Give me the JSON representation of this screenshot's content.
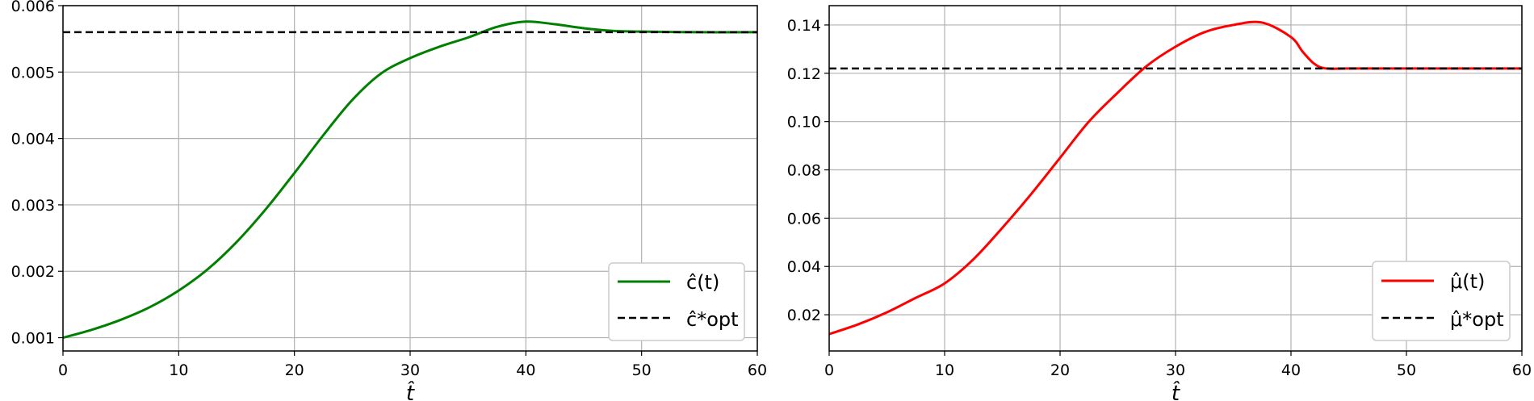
{
  "chart_data": [
    {
      "type": "line",
      "xlabel": "t̂",
      "xlim": [
        0,
        60
      ],
      "ylim": [
        0.0008,
        0.006
      ],
      "xticks": [
        "0",
        "10",
        "20",
        "30",
        "40",
        "50",
        "60"
      ],
      "yticks": [
        "0.001",
        "0.002",
        "0.003",
        "0.004",
        "0.005",
        "0.006"
      ],
      "grid": true,
      "legend_position": "bottom-right",
      "series": [
        {
          "name": "ĉ(t)",
          "color": "#008000",
          "style": "solid",
          "x": [
            0,
            2.5,
            5,
            7.5,
            10,
            12.5,
            15,
            17.5,
            20,
            22.5,
            25,
            27.5,
            30,
            32.5,
            35,
            37.5,
            40,
            42.5,
            45,
            47.5,
            50,
            55,
            60
          ],
          "y": [
            0.001,
            0.00112,
            0.00127,
            0.00146,
            0.00171,
            0.00203,
            0.00244,
            0.00293,
            0.00348,
            0.00405,
            0.00458,
            0.00498,
            0.00521,
            0.00538,
            0.00552,
            0.00568,
            0.00576,
            0.00572,
            0.00566,
            0.00562,
            0.00561,
            0.0056,
            0.0056
          ]
        },
        {
          "name": "ĉ*opt",
          "color": "#000000",
          "style": "dashed",
          "x": [
            0,
            60
          ],
          "y": [
            0.0056,
            0.0056
          ]
        }
      ]
    },
    {
      "type": "line",
      "xlabel": "t̂",
      "xlim": [
        0,
        60
      ],
      "ylim": [
        0.005,
        0.148
      ],
      "xticks": [
        "0",
        "10",
        "20",
        "30",
        "40",
        "50",
        "60"
      ],
      "yticks": [
        "0.02",
        "0.04",
        "0.06",
        "0.08",
        "0.10",
        "0.12",
        "0.14"
      ],
      "grid": true,
      "legend_position": "bottom-right",
      "series": [
        {
          "name": "μ̂(t)",
          "color": "#ff0000",
          "style": "solid",
          "x": [
            0,
            2.5,
            5,
            7.5,
            10,
            12.5,
            15,
            17.5,
            20,
            22.5,
            25,
            27.5,
            30,
            32.5,
            35,
            37.5,
            40,
            41,
            42,
            43,
            45,
            50,
            55,
            60
          ],
          "y": [
            0.012,
            0.016,
            0.021,
            0.027,
            0.033,
            0.043,
            0.056,
            0.07,
            0.085,
            0.1,
            0.112,
            0.123,
            0.131,
            0.137,
            0.14,
            0.141,
            0.135,
            0.129,
            0.124,
            0.122,
            0.122,
            0.122,
            0.122,
            0.122
          ]
        },
        {
          "name": "μ̂*opt",
          "color": "#000000",
          "style": "dashed",
          "x": [
            0,
            60
          ],
          "y": [
            0.122,
            0.122
          ]
        }
      ]
    }
  ]
}
